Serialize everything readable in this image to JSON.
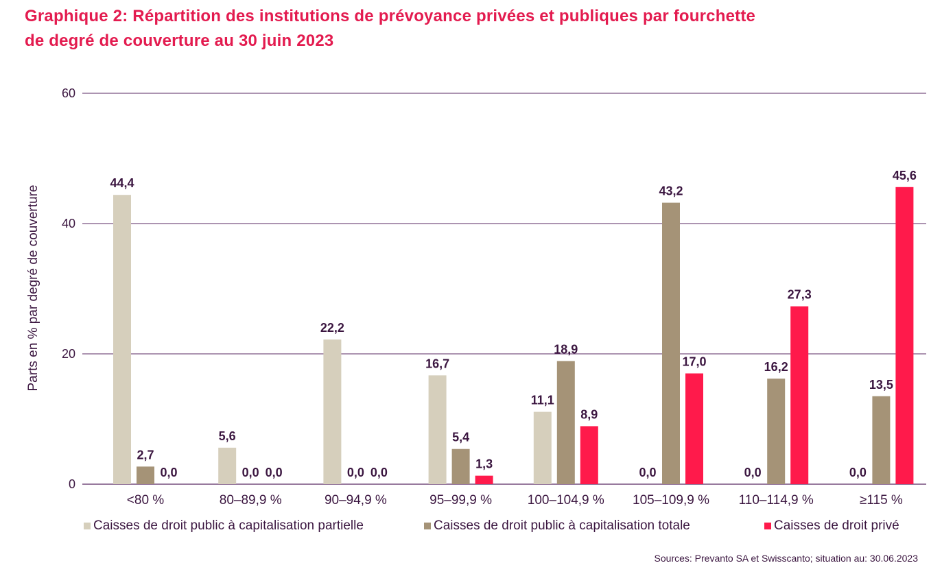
{
  "title_line1": "Graphique 2: Répartition des institutions de prévoyance privées et publiques par fourchette",
  "title_line2": "de degré de couverture au 30 juin 2023",
  "source": "Sources: Prevanto SA et Swisscanto; situation au: 30.06.2023",
  "colors": {
    "title": "#e31b4f",
    "text": "#3b1640",
    "grid": "#5a2a63"
  },
  "chart_data": {
    "type": "bar",
    "ylabel": "Parts en % par degré de couverture",
    "ylim": [
      0,
      60
    ],
    "yticks": [
      0,
      20,
      40,
      60
    ],
    "grid": true,
    "legend_position": "bottom",
    "categories": [
      "<80 %",
      "80–89,9 %",
      "90–94,9 %",
      "95–99,9 %",
      "100–104,9 %",
      "105–109,9 %",
      "110–114,9 %",
      "≥115 %"
    ],
    "series": [
      {
        "name": "Caisses de droit public à capitalisation partielle",
        "color": "#d6cfbc",
        "values": [
          44.4,
          5.6,
          22.2,
          16.7,
          11.1,
          0.0,
          0.0,
          0.0
        ],
        "labels": [
          "44,4",
          "5,6",
          "22,2",
          "16,7",
          "11,1",
          "0,0",
          "0,0",
          "0,0"
        ]
      },
      {
        "name": "Caisses de droit public à capitalisation totale",
        "color": "#a59377",
        "values": [
          2.7,
          0.0,
          0.0,
          5.4,
          18.9,
          43.2,
          16.2,
          13.5
        ],
        "labels": [
          "2,7",
          "0,0",
          "0,0",
          "5,4",
          "18,9",
          "43,2",
          "16,2",
          "13,5"
        ]
      },
      {
        "name": "Caisses de droit privé",
        "color": "#ff1a4b",
        "values": [
          0.0,
          0.0,
          0.0,
          1.3,
          8.9,
          17.0,
          27.3,
          45.6
        ],
        "labels": [
          "0,0",
          "0,0",
          "0,0",
          "1,3",
          "8,9",
          "17,0",
          "27,3",
          "45,6"
        ]
      }
    ]
  }
}
